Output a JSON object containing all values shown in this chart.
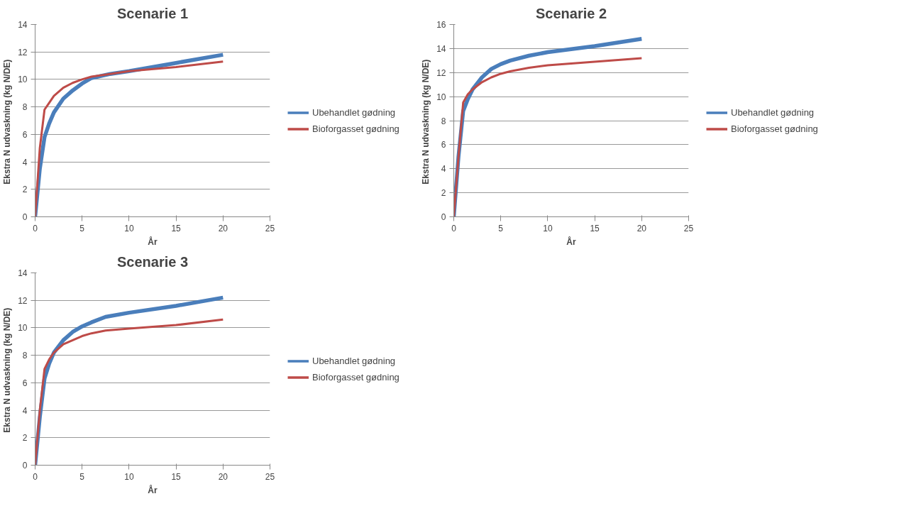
{
  "chart_data": [
    {
      "type": "line",
      "title": "Scenarie 1",
      "xlabel": "År",
      "ylabel": "Ekstra N udvaskning  (kg N/DE)",
      "xlim": [
        0,
        25
      ],
      "xticks": [
        0,
        5,
        10,
        15,
        20,
        25
      ],
      "ylim": [
        0,
        14
      ],
      "yticks": [
        0,
        2,
        4,
        6,
        8,
        10,
        12,
        14
      ],
      "grid": "y",
      "legend": "right",
      "marker": "none",
      "line_style": "solid",
      "series": [
        {
          "name": "Ubehandlet gødning",
          "color": "#4a7ebb",
          "x": [
            0,
            0.5,
            1,
            1.5,
            2,
            3,
            4,
            5,
            6,
            8,
            10,
            15,
            20
          ],
          "values": [
            0,
            3.5,
            5.8,
            6.8,
            7.6,
            8.6,
            9.2,
            9.7,
            10.1,
            10.4,
            10.6,
            11.2,
            11.8
          ]
        },
        {
          "name": "Bioforgasset gødning",
          "color": "#be4b48",
          "x": [
            0,
            0.5,
            1,
            1.5,
            2,
            3,
            4,
            5,
            6,
            8,
            10,
            15,
            20
          ],
          "values": [
            0,
            5,
            7.8,
            8.3,
            8.8,
            9.4,
            9.75,
            10.0,
            10.2,
            10.4,
            10.6,
            10.9,
            11.3
          ]
        }
      ]
    },
    {
      "type": "line",
      "title": "Scenarie 2",
      "xlabel": "År",
      "ylabel": "Ekstra N udvaskning  (kg N/DE)",
      "xlim": [
        0,
        25
      ],
      "xticks": [
        0,
        5,
        10,
        15,
        20,
        25
      ],
      "ylim": [
        0,
        16
      ],
      "yticks": [
        0,
        2,
        4,
        6,
        8,
        10,
        12,
        14,
        16
      ],
      "grid": "y",
      "legend": "right",
      "marker": "none",
      "line_style": "solid",
      "series": [
        {
          "name": "Ubehandlet gødning",
          "color": "#4a7ebb",
          "x": [
            0,
            0.5,
            1,
            1.5,
            2,
            3,
            4,
            5,
            6,
            8,
            10,
            15,
            20
          ],
          "values": [
            0,
            5,
            8.8,
            9.8,
            10.6,
            11.6,
            12.3,
            12.7,
            13.0,
            13.4,
            13.7,
            14.2,
            14.8
          ]
        },
        {
          "name": "Bioforgasset gødning",
          "color": "#be4b48",
          "x": [
            0,
            0.5,
            1,
            1.5,
            2,
            3,
            4,
            5,
            6,
            8,
            10,
            15,
            20
          ],
          "values": [
            0,
            5,
            9.5,
            10.2,
            10.6,
            11.2,
            11.6,
            11.9,
            12.1,
            12.4,
            12.6,
            12.9,
            13.2
          ]
        }
      ]
    },
    {
      "type": "line",
      "title": "Scenarie 3",
      "xlabel": "År",
      "ylabel": "Ekstra N udvaskning  (kg N/DE)",
      "xlim": [
        0,
        25
      ],
      "xticks": [
        0,
        5,
        10,
        15,
        20,
        25
      ],
      "ylim": [
        0,
        14
      ],
      "yticks": [
        0,
        2,
        4,
        6,
        8,
        10,
        12,
        14
      ],
      "grid": "y",
      "legend": "right",
      "marker": "none",
      "line_style": "solid",
      "series": [
        {
          "name": "Ubehandlet gødning",
          "color": "#4a7ebb",
          "x": [
            0,
            0.5,
            1,
            1.5,
            2,
            3,
            4,
            5,
            6,
            7.5,
            10,
            15,
            20
          ],
          "values": [
            0,
            3.5,
            6.3,
            7.4,
            8.2,
            9.1,
            9.7,
            10.1,
            10.4,
            10.8,
            11.1,
            11.6,
            12.2
          ]
        },
        {
          "name": "Bioforgasset gødning",
          "color": "#be4b48",
          "x": [
            0,
            0.5,
            1,
            1.5,
            2,
            3,
            4,
            5,
            6,
            7.5,
            10,
            15,
            20
          ],
          "values": [
            0,
            4,
            7.0,
            7.7,
            8.2,
            8.8,
            9.1,
            9.4,
            9.6,
            9.8,
            9.95,
            10.2,
            10.6
          ]
        }
      ]
    }
  ]
}
